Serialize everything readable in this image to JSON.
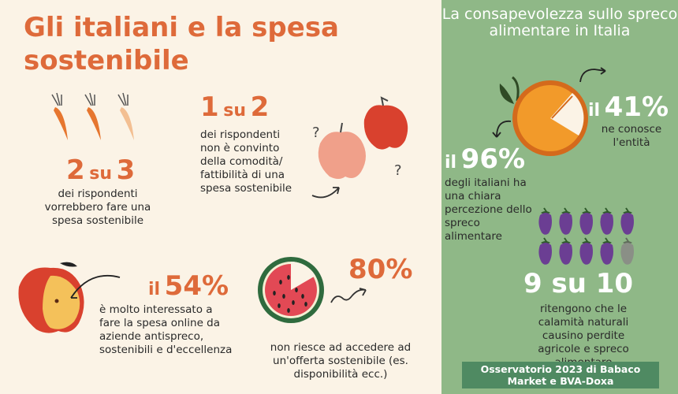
{
  "title": "Gli italiani e la spesa sostenibile",
  "stat1": {
    "num": "2",
    "su": "su",
    "den": "3",
    "text": "dei rispondenti vorrebbero fare una spesa sostenibile"
  },
  "stat2": {
    "num": "1",
    "su": "su",
    "den": "2",
    "text": "dei rispondenti non è convinto della comodità/ fattibilità di una spesa sostenibile"
  },
  "stat3": {
    "prefix": "il",
    "value": "54%",
    "text": "è molto interessato a fare la spesa online da aziende antispreco, sostenibili e d'eccellenza"
  },
  "stat4": {
    "value": "80%",
    "text": "non riesce ad accedere ad un'offerta sostenibile (es. disponibilità ecc.)"
  },
  "right": {
    "title": "La consapevolezza sullo spreco alimentare in Italia",
    "stat41": {
      "prefix": "il",
      "value": "41%",
      "text": "ne conosce l'entità"
    },
    "stat96": {
      "prefix": "il",
      "value": "96%",
      "text": "degli italiani ha una chiara percezione dello spreco alimentare"
    },
    "stat9": {
      "value": "9 su 10",
      "text": "ritengono che le calamità naturali causino perdite agricole e spreco alimentare"
    },
    "source": "Osservatorio 2023 di Babaco Market e BVA-Doxa"
  },
  "colors": {
    "accent": "#de6a3a",
    "green_panel": "#8fb887",
    "dark_green": "#4f8a62",
    "background": "#fbf3e6"
  },
  "icons": [
    "carrot-icon",
    "apple-icon",
    "question-icon",
    "watermelon-icon",
    "arrow-icon",
    "orange-pie-icon",
    "eggplant-icon"
  ]
}
